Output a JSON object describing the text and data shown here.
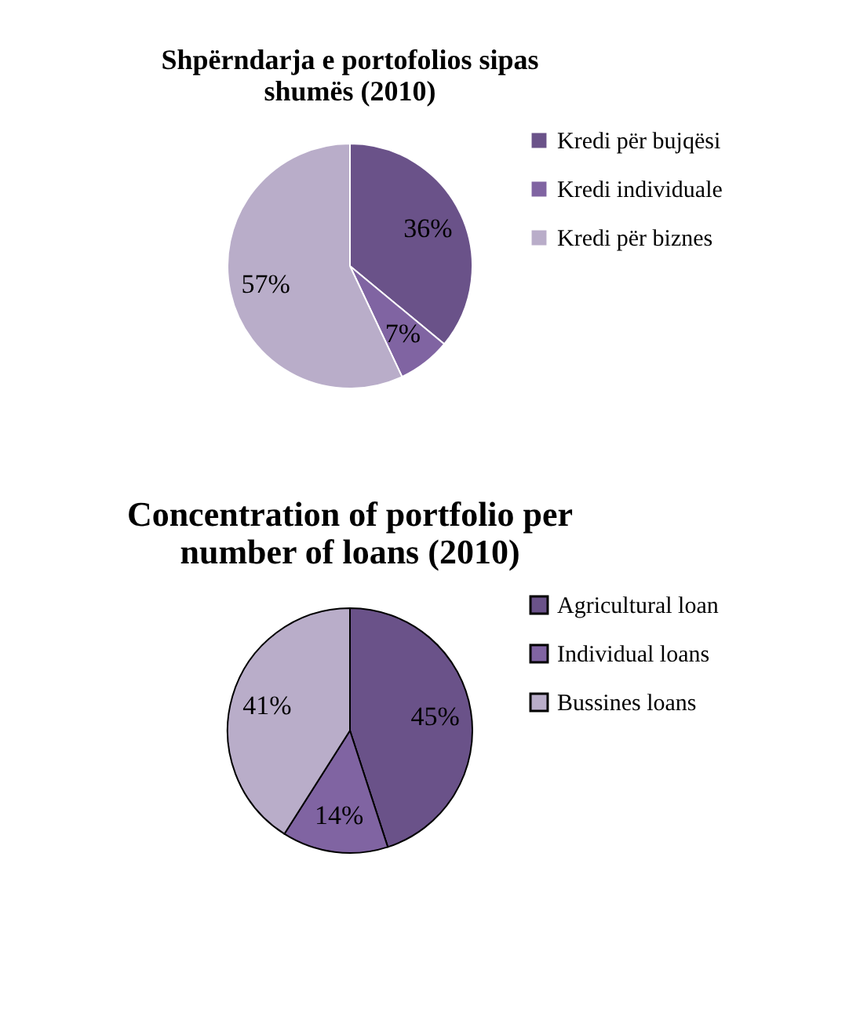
{
  "chart_data": [
    {
      "type": "pie",
      "title": "Shpërndarja e portofolios sipas shumës (2010)",
      "categories": [
        "Kredi për bujqësi",
        "Kredi individuale",
        "Kredi për biznes"
      ],
      "values": [
        36,
        7,
        57
      ],
      "value_labels": [
        "36%",
        "7%",
        "57%"
      ],
      "colors": [
        "#6a5289",
        "#8064a2",
        "#b9adc9"
      ],
      "legend": "right"
    },
    {
      "type": "pie",
      "title": "Concentration of portfolio per number of loans (2010)",
      "categories": [
        "Agricultural loan",
        "Individual loans",
        "Bussines loans"
      ],
      "values": [
        45,
        14,
        41
      ],
      "value_labels": [
        "45%",
        "14%",
        "41%"
      ],
      "colors": [
        "#6a5289",
        "#8064a2",
        "#b9adc9"
      ],
      "legend": "right"
    }
  ]
}
